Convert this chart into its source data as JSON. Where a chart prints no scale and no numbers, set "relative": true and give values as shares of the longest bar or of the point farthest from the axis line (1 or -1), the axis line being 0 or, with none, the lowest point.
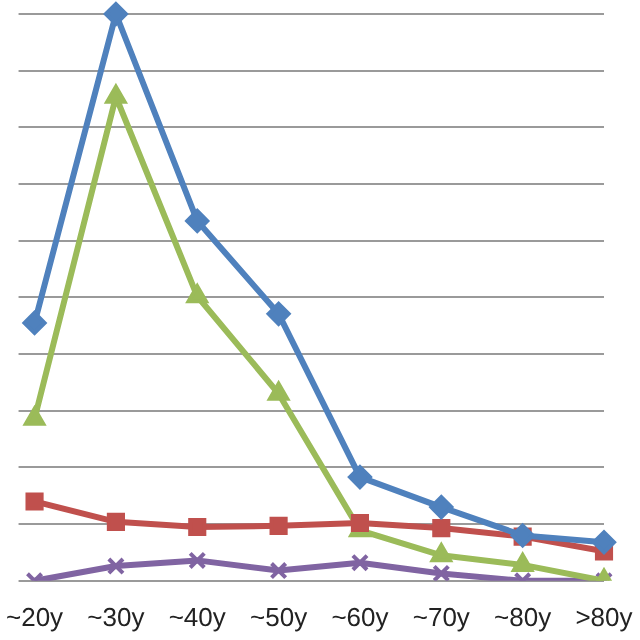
{
  "chart_data": {
    "type": "line",
    "relative": true,
    "categories": [
      "~20y",
      "~30y",
      "~40y",
      "~50y",
      "~60y",
      "~70y",
      "~80y",
      ">80y"
    ],
    "series": [
      {
        "color": "#4f81bd",
        "marker": "diamond",
        "values": [
          0.455,
          1,
          0.635,
          0.471,
          0.183,
          0.13,
          0.08,
          0.068
        ]
      },
      {
        "color": "#c0504d",
        "marker": "square",
        "values": [
          0.14,
          0.104,
          0.095,
          0.097,
          0.102,
          0.093,
          0.078,
          0.052
        ]
      },
      {
        "color": "#9bbb59",
        "marker": "triangle",
        "values": [
          0.286,
          0.854,
          0.502,
          0.33,
          0.089,
          0.045,
          0.028,
          0
        ]
      },
      {
        "color": "#8064a2",
        "marker": "cross",
        "values": [
          0,
          0.026,
          0.036,
          0.018,
          0.032,
          0.013,
          0,
          0
        ]
      }
    ],
    "grid": "y",
    "line_style": "solid"
  }
}
